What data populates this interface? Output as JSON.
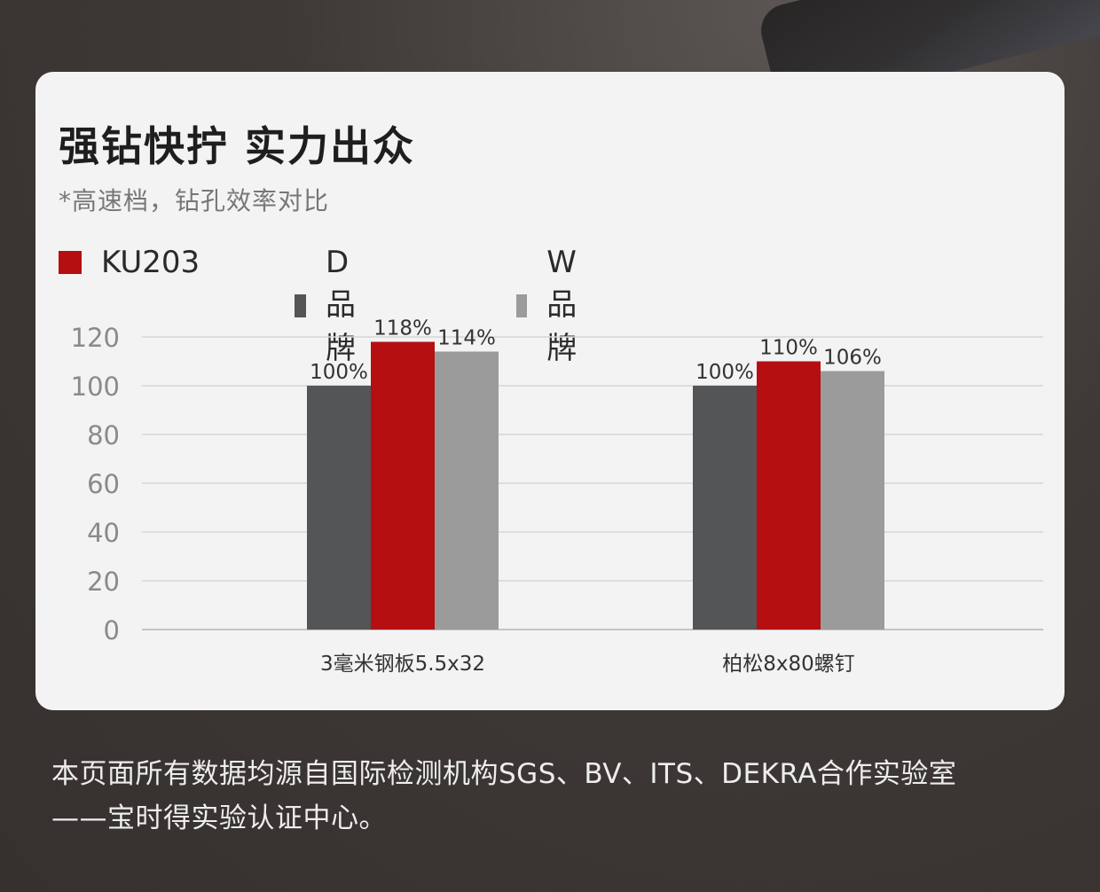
{
  "title": "强钻快拧 实力出众",
  "subtitle": "*高速档，钻孔效率对比",
  "legend": [
    {
      "label": "KU203",
      "color": "#b50f12"
    },
    {
      "label": "D品牌",
      "color": "#545557"
    },
    {
      "label": "W品牌",
      "color": "#9b9b9b"
    }
  ],
  "footer": {
    "line1": "本页面所有数据均源自国际检测机构SGS、BV、ITS、DEKRA合作实验室",
    "line2": "——宝时得实验认证中心。"
  },
  "chart_data": {
    "type": "bar",
    "categories": [
      "3毫米钢板5.5x32",
      "柏松8x80螺钉"
    ],
    "series": [
      {
        "name": "D品牌",
        "values": [
          100,
          100
        ],
        "labels": [
          "100%",
          "100%"
        ],
        "color": "#545557"
      },
      {
        "name": "KU203",
        "values": [
          118,
          110
        ],
        "labels": [
          "118%",
          "110%"
        ],
        "color": "#b50f12"
      },
      {
        "name": "W品牌",
        "values": [
          114,
          106
        ],
        "labels": [
          "114%",
          "106%"
        ],
        "color": "#9b9b9b"
      }
    ],
    "yticks": [
      0,
      20,
      40,
      60,
      80,
      100,
      120
    ],
    "ylim": [
      0,
      120
    ],
    "grid": true,
    "legend_position": "top-left"
  }
}
